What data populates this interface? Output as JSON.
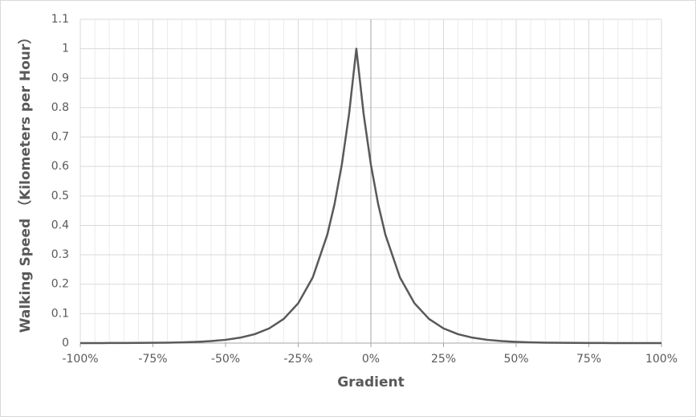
{
  "chart_data": {
    "type": "line",
    "xlabel": "Gradient",
    "ylabel": "Walking Speed （Kilometers per Hour）",
    "x": [
      -100,
      -95,
      -90,
      -85,
      -80,
      -75,
      -70,
      -65,
      -60,
      -55,
      -50,
      -45,
      -40,
      -35,
      -30,
      -25,
      -20,
      -15,
      -12.5,
      -10,
      -7.5,
      -5,
      -2.5,
      0,
      2.5,
      5,
      10,
      15,
      20,
      25,
      30,
      35,
      40,
      45,
      50,
      55,
      60,
      65,
      70,
      75,
      80,
      85,
      90,
      95,
      100
    ],
    "series": [
      {
        "color": "#595959",
        "values": [
          0.0001,
          0.0001,
          0.0002,
          0.0003,
          0.0006,
          0.0009,
          0.0015,
          0.0025,
          0.0041,
          0.0067,
          0.0111,
          0.0183,
          0.0302,
          0.0498,
          0.0821,
          0.1353,
          0.2231,
          0.3679,
          0.4724,
          0.6065,
          0.7788,
          1,
          0.7788,
          0.6065,
          0.4724,
          0.3679,
          0.2231,
          0.1353,
          0.0821,
          0.0498,
          0.0302,
          0.0183,
          0.0111,
          0.0067,
          0.0041,
          0.0025,
          0.0015,
          0.0009,
          0.0006,
          0.0003,
          0.0002,
          0.0001,
          0.0001,
          0,
          0
        ]
      }
    ],
    "xlim": [
      -100,
      100
    ],
    "xticks": [
      {
        "value": -100,
        "label": "-100%"
      },
      {
        "value": -75,
        "label": "-75%"
      },
      {
        "value": -50,
        "label": "-50%"
      },
      {
        "value": -25,
        "label": "-25%"
      },
      {
        "value": 0,
        "label": "0%"
      },
      {
        "value": 25,
        "label": "25%"
      },
      {
        "value": 50,
        "label": "50%"
      },
      {
        "value": 75,
        "label": "75%"
      },
      {
        "value": 100,
        "label": "100%"
      }
    ],
    "ylim": [
      0,
      1.1
    ],
    "yticks": [
      0,
      0.1,
      0.2,
      0.3,
      0.4,
      0.5,
      0.6,
      0.7,
      0.8,
      0.9,
      1,
      1.1
    ],
    "grid": true,
    "x_minor_grid_step": 5
  }
}
